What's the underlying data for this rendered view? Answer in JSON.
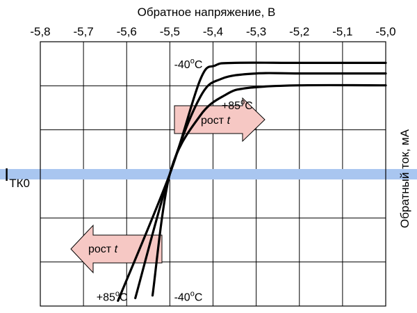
{
  "chart_data": {
    "type": "line",
    "xlabel": "Обратное напряжение, В",
    "ylabel": "Обратный ток, мА",
    "xlim": [
      -5.8,
      -5.0
    ],
    "x_ticks": [
      "-5,8",
      "-5,7",
      "-5,6",
      "-5,5",
      "-5,4",
      "-5,3",
      "-5,2",
      "-5,1",
      "-5,0"
    ],
    "grid": true,
    "reference_line_label": "I",
    "reference_line_sub": "ТК0",
    "series": [
      {
        "x": [
          -5.62,
          -5.5,
          -5.43,
          -5.395,
          -5.35,
          -5.2,
          -5.0
        ],
        "y": [
          0.02,
          0.5,
          0.855,
          0.91,
          0.92,
          0.92,
          0.92
        ]
      },
      {
        "x": [
          -5.58,
          -5.5,
          -5.43,
          -5.38,
          -5.3,
          -5.2,
          -5.0
        ],
        "y": [
          0.03,
          0.5,
          0.79,
          0.86,
          0.88,
          0.88,
          0.88
        ]
      },
      {
        "x": [
          -5.54,
          -5.5,
          -5.43,
          -5.37,
          -5.32,
          -5.2,
          -5.0
        ],
        "y": [
          0.04,
          0.5,
          0.72,
          0.8,
          0.825,
          0.835,
          0.835
        ]
      }
    ],
    "annotations": [
      {
        "text": "-40",
        "sup": "o",
        "unit": "C",
        "x": -5.49,
        "y": 0.9
      },
      {
        "text": "+85",
        "sup": "o",
        "unit": "C",
        "x": -5.38,
        "y": 0.745
      },
      {
        "text": "+85",
        "sup": "o",
        "unit": "C",
        "x": -5.67,
        "y": 0.02
      },
      {
        "text": "-40",
        "sup": "o",
        "unit": "C",
        "x": -5.49,
        "y": 0.02
      }
    ],
    "arrows": [
      {
        "label": "рост",
        "label_italic": "t",
        "direction": "right"
      },
      {
        "label": "рост",
        "label_italic": "t",
        "direction": "left"
      }
    ],
    "colors": {
      "curve": "#000000",
      "grid": "#000000",
      "arrow_fill": "#f6c8c4",
      "ref_band": "#a9c6f0"
    }
  }
}
